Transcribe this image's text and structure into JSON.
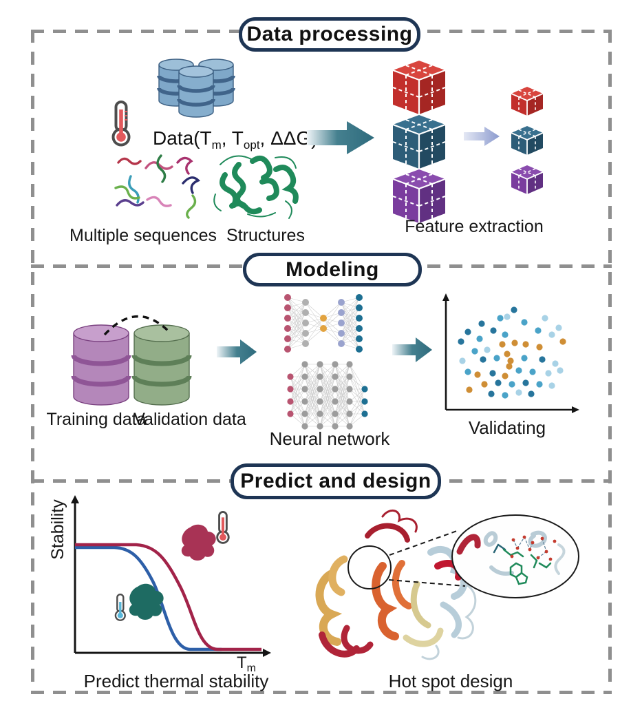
{
  "figure": {
    "sections": {
      "data_processing": {
        "title": "Data processing"
      },
      "modeling": {
        "title": "Modeling"
      },
      "predict_design": {
        "title": "Predict and design"
      }
    },
    "data_processing": {
      "data_text": {
        "p1": "Data(T",
        "s1": "m",
        "p2": ", T",
        "s2": "opt",
        "p3": ", ΔΔG)"
      },
      "multiple_sequences": "Multiple sequences",
      "structures": "Structures",
      "feature_extraction": "Feature extraction"
    },
    "modeling": {
      "training": "Training data",
      "validation": "Validation data",
      "neural_network": "Neural network",
      "validating": "Validating"
    },
    "predict_design": {
      "stability_axis": "Stability",
      "tm": {
        "base": "T",
        "sub": "m"
      },
      "predict_label": "Predict thermal stability",
      "hotspot_label": "Hot spot design"
    },
    "colors": {
      "frame_dash": "#8f8f8f",
      "title_border": "#1e3554",
      "arrow_teal": "#2e6b7d",
      "cube_red": "#c22f2c",
      "cube_teal": "#2d5d78",
      "cube_purple": "#7a3c9e",
      "db_blue": "#7fa8c9",
      "db_purple": "#b487ba",
      "db_green": "#92ad88",
      "curve_blue": "#2d5fa8",
      "curve_red": "#a22349",
      "scatter_orange": "#cf8e35",
      "scatter_blue": "#2e86ad",
      "protein_green": "#1f8a5a"
    }
  }
}
